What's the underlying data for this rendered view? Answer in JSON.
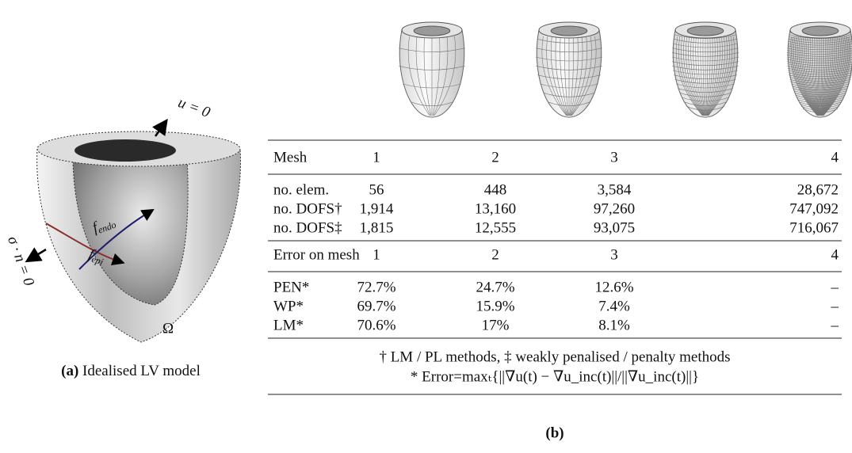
{
  "panel_a": {
    "labels": {
      "top_bc": "u = 0",
      "side_bc": "σ · n = 0",
      "f_endo": {
        "base": "f",
        "sub": "endo"
      },
      "f_epi": {
        "base": "f",
        "sub": "epi"
      },
      "domain": "Ω"
    },
    "caption_label": "(a)",
    "caption": "Idealised LV model"
  },
  "panel_b": {
    "table": {
      "header": [
        "Mesh",
        "1",
        "2",
        "3",
        "4"
      ],
      "rows": [
        [
          "no. elem.",
          "56",
          "448",
          "3,584",
          "28,672"
        ],
        [
          "no. DOFS†",
          "1,914",
          "13,160",
          "97,260",
          "747,092"
        ],
        [
          "no. DOFS‡",
          "1,815",
          "12,555",
          "93,075",
          "716,067"
        ]
      ],
      "error_header": [
        "Error on mesh",
        "1",
        "2",
        "3",
        "4"
      ],
      "error_rows": [
        [
          "PEN*",
          "72.7%",
          "24.7%",
          "12.6%",
          "–"
        ],
        [
          "WP*",
          "69.7%",
          "15.9%",
          "7.4%",
          "–"
        ],
        [
          "LM*",
          "70.6%",
          "17%",
          "8.1%",
          "–"
        ]
      ],
      "notes": [
        "† LM / PL methods, ‡ weakly penalised / penalty methods",
        "* Error=maxₜ{||∇u(t) − ∇u_inc(t)||/||∇u_inc(t)||}"
      ]
    },
    "caption": "(b)"
  }
}
